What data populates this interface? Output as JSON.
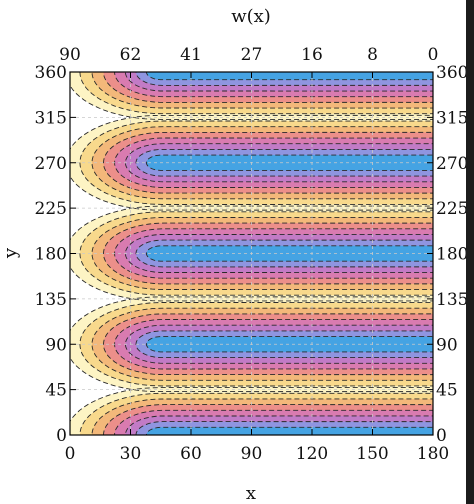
{
  "chart_data": {
    "type": "contour",
    "xlabel": "x",
    "ylabel": "y",
    "top_axis_label": "w(x)",
    "x_ticks": [
      0,
      30,
      60,
      90,
      120,
      150,
      180
    ],
    "x_tick_labels": [
      "0",
      "30",
      "60",
      "90",
      "120",
      "150",
      "180"
    ],
    "top_ticks": [
      0,
      30,
      60,
      90,
      120,
      150,
      180
    ],
    "top_tick_labels": [
      "90",
      "62",
      "41",
      "27",
      "16",
      "8",
      "0"
    ],
    "y_ticks": [
      0,
      45,
      90,
      135,
      180,
      225,
      270,
      315,
      360
    ],
    "y_tick_labels": [
      "0",
      "45",
      "90",
      "135",
      "180",
      "225",
      "270",
      "315",
      "360"
    ],
    "xlim": [
      0,
      180
    ],
    "ylim": [
      0,
      360
    ],
    "band_centers_y": [
      0,
      90,
      180,
      270,
      360
    ],
    "band_boundaries_y": [
      45,
      135,
      225,
      315
    ],
    "levels": 8,
    "colors": [
      "#ffffff",
      "#fdf4c4",
      "#f8d98c",
      "#f3b87a",
      "#ec8f8a",
      "#d97bb0",
      "#c27bc6",
      "#8f95e0",
      "#45a3e3"
    ],
    "contour_line_color": "#2a2a2a",
    "grid": true
  }
}
